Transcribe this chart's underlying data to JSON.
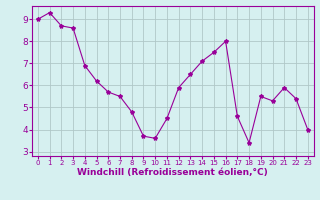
{
  "x": [
    0,
    1,
    2,
    3,
    4,
    5,
    6,
    7,
    8,
    9,
    10,
    11,
    12,
    13,
    14,
    15,
    16,
    17,
    18,
    19,
    20,
    21,
    22,
    23
  ],
  "y": [
    9.0,
    9.3,
    8.7,
    8.6,
    6.9,
    6.2,
    5.7,
    5.5,
    4.8,
    3.7,
    3.6,
    4.5,
    5.9,
    6.5,
    7.1,
    7.5,
    8.0,
    4.6,
    3.4,
    5.5,
    5.3,
    5.9,
    5.4,
    4.0
  ],
  "line_color": "#990099",
  "marker": "*",
  "marker_size": 3,
  "bg_color": "#d6f0f0",
  "grid_color": "#b0c8c8",
  "xlabel": "Windchill (Refroidissement éolien,°C)",
  "xlabel_color": "#990099",
  "tick_color": "#990099",
  "ylim": [
    2.8,
    9.6
  ],
  "xlim": [
    -0.5,
    23.5
  ],
  "yticks": [
    3,
    4,
    5,
    6,
    7,
    8,
    9
  ],
  "xticks": [
    0,
    1,
    2,
    3,
    4,
    5,
    6,
    7,
    8,
    9,
    10,
    11,
    12,
    13,
    14,
    15,
    16,
    17,
    18,
    19,
    20,
    21,
    22,
    23
  ],
  "xlabel_fontsize": 6.5,
  "tick_fontsize_y": 6.5,
  "tick_fontsize_x": 5.0
}
